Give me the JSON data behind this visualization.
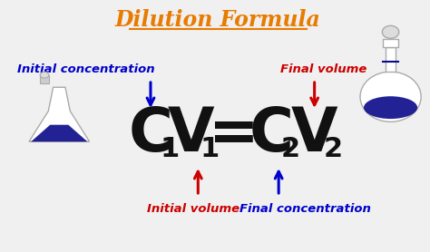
{
  "title": "Dilution Formula",
  "title_color": "#E87B00",
  "title_fontsize": 17,
  "bg_color": "#f0f0f0",
  "formula_color": "#111111",
  "label_blue": "#0000CC",
  "label_red": "#CC0000",
  "labels": {
    "initial_concentration": "Initial concentration",
    "initial_volume": "Initial volume",
    "final_volume": "Final volume",
    "final_concentration": "Final concentration"
  },
  "label_fontsize": 9.5,
  "arrow_blue": "#0000CC",
  "arrow_red": "#CC0000",
  "liquid_color": "#0a0a8a"
}
